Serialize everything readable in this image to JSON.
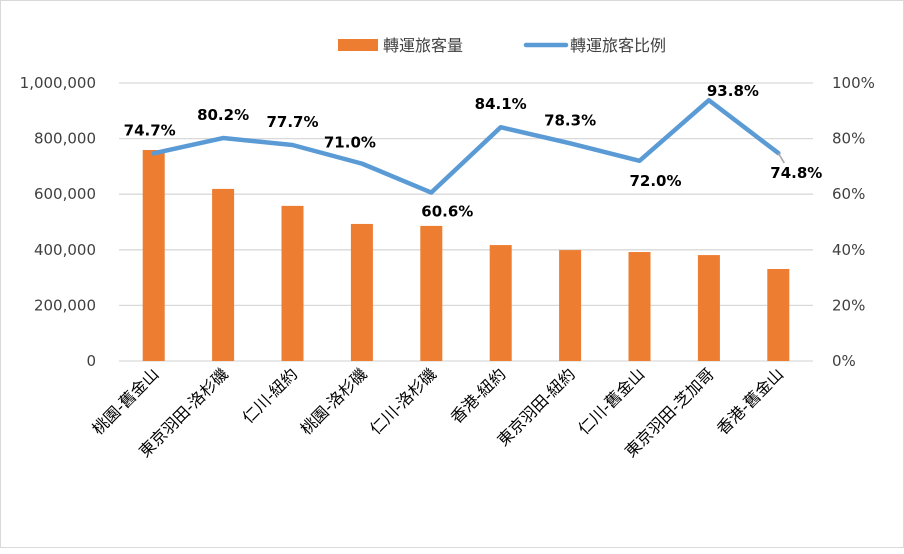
{
  "chart_data": {
    "type": "bar+line",
    "title": "",
    "legend": {
      "position": "top",
      "entries": [
        {
          "label": "轉運旅客量",
          "type": "bar",
          "color": "#ED7D31"
        },
        {
          "label": "轉運旅客比例",
          "type": "line",
          "color": "#5B9BD5"
        }
      ]
    },
    "categories": [
      "桃園-舊金山",
      "東京羽田-洛杉磯",
      "仁川-紐約",
      "桃園-洛杉磯",
      "仁川-洛杉磯",
      "香港-紐約",
      "東京羽田-紐約",
      "仁川-舊金山",
      "東京羽田-芝加哥",
      "香港-舊金山"
    ],
    "series": [
      {
        "name": "轉運旅客量",
        "type": "bar",
        "axis": "left",
        "color": "#ED7D31",
        "values": [
          759000,
          619000,
          558000,
          493000,
          486000,
          417000,
          399000,
          392000,
          381000,
          331000
        ]
      },
      {
        "name": "轉運旅客比例",
        "type": "line",
        "axis": "right",
        "color": "#5B9BD5",
        "values": [
          74.7,
          80.2,
          77.7,
          71.0,
          60.6,
          84.1,
          78.3,
          72.0,
          93.8,
          74.8
        ],
        "labels": [
          "74.7%",
          "80.2%",
          "77.7%",
          "71.0%",
          "60.6%",
          "84.1%",
          "78.3%",
          "72.0%",
          "93.8%",
          "74.8%"
        ]
      }
    ],
    "y_left": {
      "ylim": [
        0,
        1000000
      ],
      "ticks": [
        "0",
        "200,000",
        "400,000",
        "600,000",
        "800,000",
        "1,000,000"
      ]
    },
    "y_right": {
      "ylim": [
        0,
        100
      ],
      "ticks": [
        "0%",
        "20%",
        "40%",
        "60%",
        "80%",
        "100%"
      ]
    },
    "grid": true,
    "xlabel": "",
    "ylabel": ""
  }
}
